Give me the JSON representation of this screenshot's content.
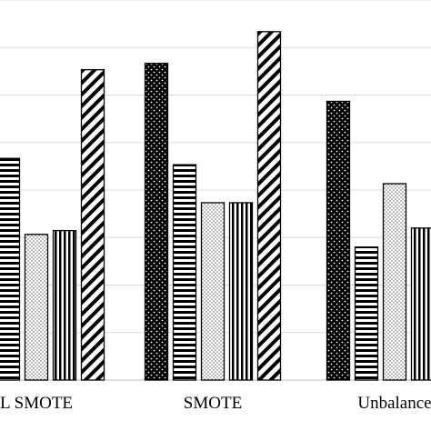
{
  "chart_data": {
    "type": "bar",
    "categories": [
      "L SMOTE",
      "SMOTE",
      "Unbalance"
    ],
    "series": [
      {
        "pattern": "dots-dark",
        "values": [
          null,
          0.95,
          0.92
        ]
      },
      {
        "pattern": "horizontal-stripes",
        "values": [
          0.875,
          0.87,
          0.805
        ]
      },
      {
        "pattern": "dots-light",
        "values": [
          0.815,
          0.84,
          0.855
        ]
      },
      {
        "pattern": "vertical-stripes",
        "values": [
          0.818,
          0.84,
          0.82
        ]
      },
      {
        "pattern": "diagonal-stripes",
        "values": [
          0.945,
          0.975,
          null
        ]
      }
    ],
    "ylim": [
      0.7,
      1.0
    ],
    "grid": true,
    "legend": "none",
    "title": "",
    "xlabel": "",
    "ylabel": "",
    "colors": {
      "bar_stroke": "#000000",
      "grid": "#d9d9d9",
      "background": "#ffffff"
    }
  }
}
